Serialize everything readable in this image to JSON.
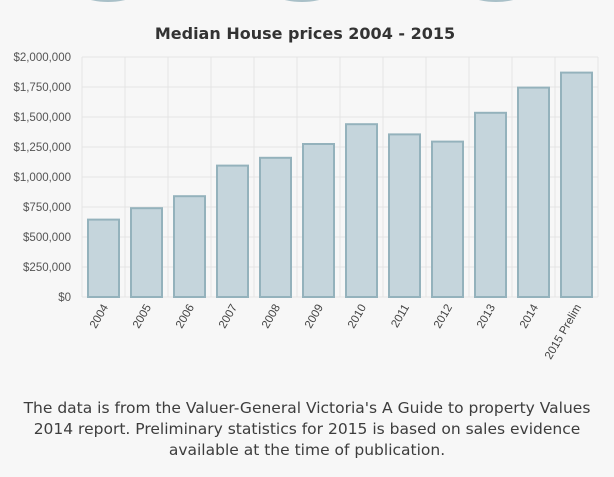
{
  "chart_data": {
    "type": "bar",
    "title": "Median House prices 2004 - 2015",
    "xlabel": "",
    "ylabel": "",
    "categories": [
      "2004",
      "2005",
      "2006",
      "2007",
      "2008",
      "2009",
      "2010",
      "2011",
      "2012",
      "2013",
      "2014",
      "2015 Prelim"
    ],
    "values": [
      645000,
      740000,
      840000,
      1095000,
      1160000,
      1275000,
      1440000,
      1355000,
      1295000,
      1535000,
      1745000,
      1870000
    ],
    "ylim": [
      0,
      2000000
    ],
    "yticks": [
      0,
      250000,
      500000,
      750000,
      1000000,
      1250000,
      1500000,
      1750000,
      2000000
    ],
    "ytick_labels": [
      "$0",
      "$250,000",
      "$500,000",
      "$750,000",
      "$1,000,000",
      "$1,250,000",
      "$1,500,000",
      "$1,750,000",
      "$2,000,000"
    ],
    "grid": true,
    "colors": {
      "bar_fill": "#c5d5dc",
      "bar_stroke": "#94b2bc",
      "grid": "#e4e4e4"
    }
  },
  "caption": "The data is from the Valuer-General Victoria's A Guide to property Values 2014 report. Preliminary statistics for 2015 is based on sales evidence available at the time of publication."
}
